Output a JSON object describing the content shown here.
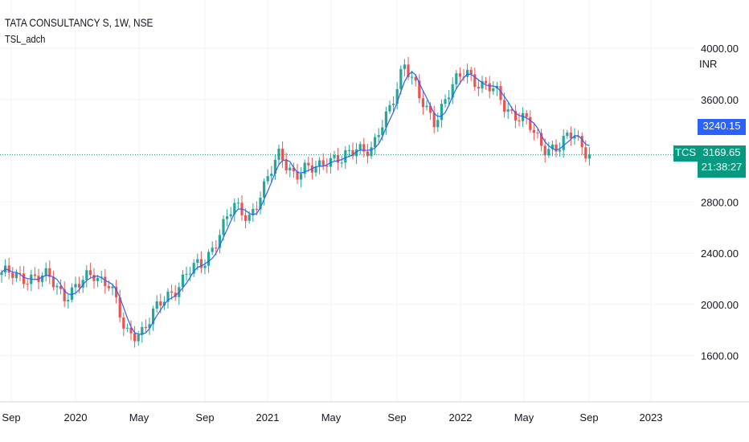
{
  "header": {
    "title": "TATA CONSULTANCY S, 1W, NSE",
    "indicator": "TSL_adch",
    "currency": "INR"
  },
  "price_tags": {
    "tsl_value": "3240.15",
    "symbol": "TCS",
    "last_price": "3169.65",
    "countdown": "21:38:27"
  },
  "colors": {
    "up": "#26a69a",
    "down": "#ef5350",
    "line": "#2962ff",
    "tsl_tag": "#2962ff",
    "last_tag": "#089981"
  },
  "chart_data": {
    "type": "candlestick",
    "title": "TATA CONSULTANCY S, 1W, NSE",
    "y_ticks": [
      "4000.00",
      "3600.00",
      "2800.00",
      "2400.00",
      "2000.00",
      "1600.00"
    ],
    "y_tick_values": [
      4000,
      3600,
      2800,
      2400,
      2000,
      1600
    ],
    "x_ticks": [
      "Sep",
      "2020",
      "May",
      "Sep",
      "2021",
      "May",
      "Sep",
      "2022",
      "May",
      "Sep",
      "2023"
    ],
    "ylim": [
      1300,
      4150
    ],
    "monthly_close_anchors": [
      2250,
      2200,
      2230,
      2200,
      2080,
      2150,
      2230,
      2180,
      1750,
      1800,
      1950,
      2100,
      2250,
      2300,
      2550,
      2750,
      2700,
      2900,
      3200,
      3000,
      3050,
      3150,
      3100,
      3250,
      3200,
      3500,
      3900,
      3600,
      3450,
      3650,
      3850,
      3700,
      3650,
      3500,
      3400,
      3250,
      3200,
      3350,
      3170
    ],
    "series": [
      {
        "name": "TCS weekly",
        "type": "candle"
      },
      {
        "name": "TSL_adch",
        "type": "line"
      }
    ],
    "last_price": 3169.65,
    "tsl_value": 3240.15
  }
}
